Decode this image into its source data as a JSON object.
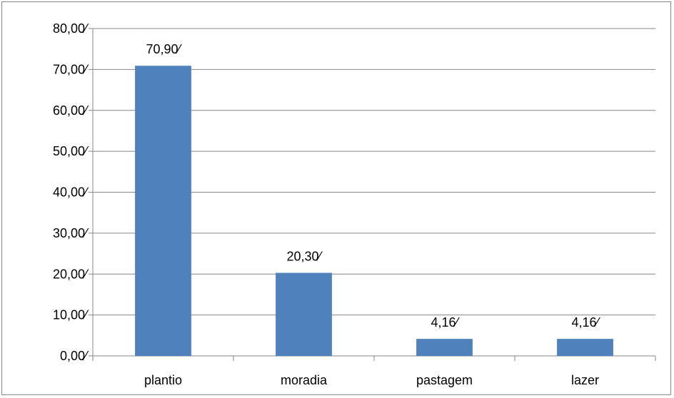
{
  "chart_data": {
    "type": "bar",
    "categories": [
      "plantio",
      "moradia",
      "pastagem",
      "lazer"
    ],
    "values": [
      70.9,
      20.3,
      4.16,
      4.16
    ],
    "data_labels": [
      "70,90⁄",
      "20,30⁄",
      "4,16⁄",
      "4,16⁄"
    ],
    "ylim": [
      0,
      80
    ],
    "yticks": [
      0,
      10,
      20,
      30,
      40,
      50,
      60,
      70,
      80
    ],
    "ytick_labels": [
      "0,00⁄",
      "10,00⁄",
      "20,00⁄",
      "30,00⁄",
      "40,00⁄",
      "50,00⁄",
      "60,00⁄",
      "70,00⁄",
      "80,00⁄"
    ],
    "grid": true,
    "legend": "none",
    "bar_color": "#4F81BD",
    "grid_color": "#868686"
  }
}
